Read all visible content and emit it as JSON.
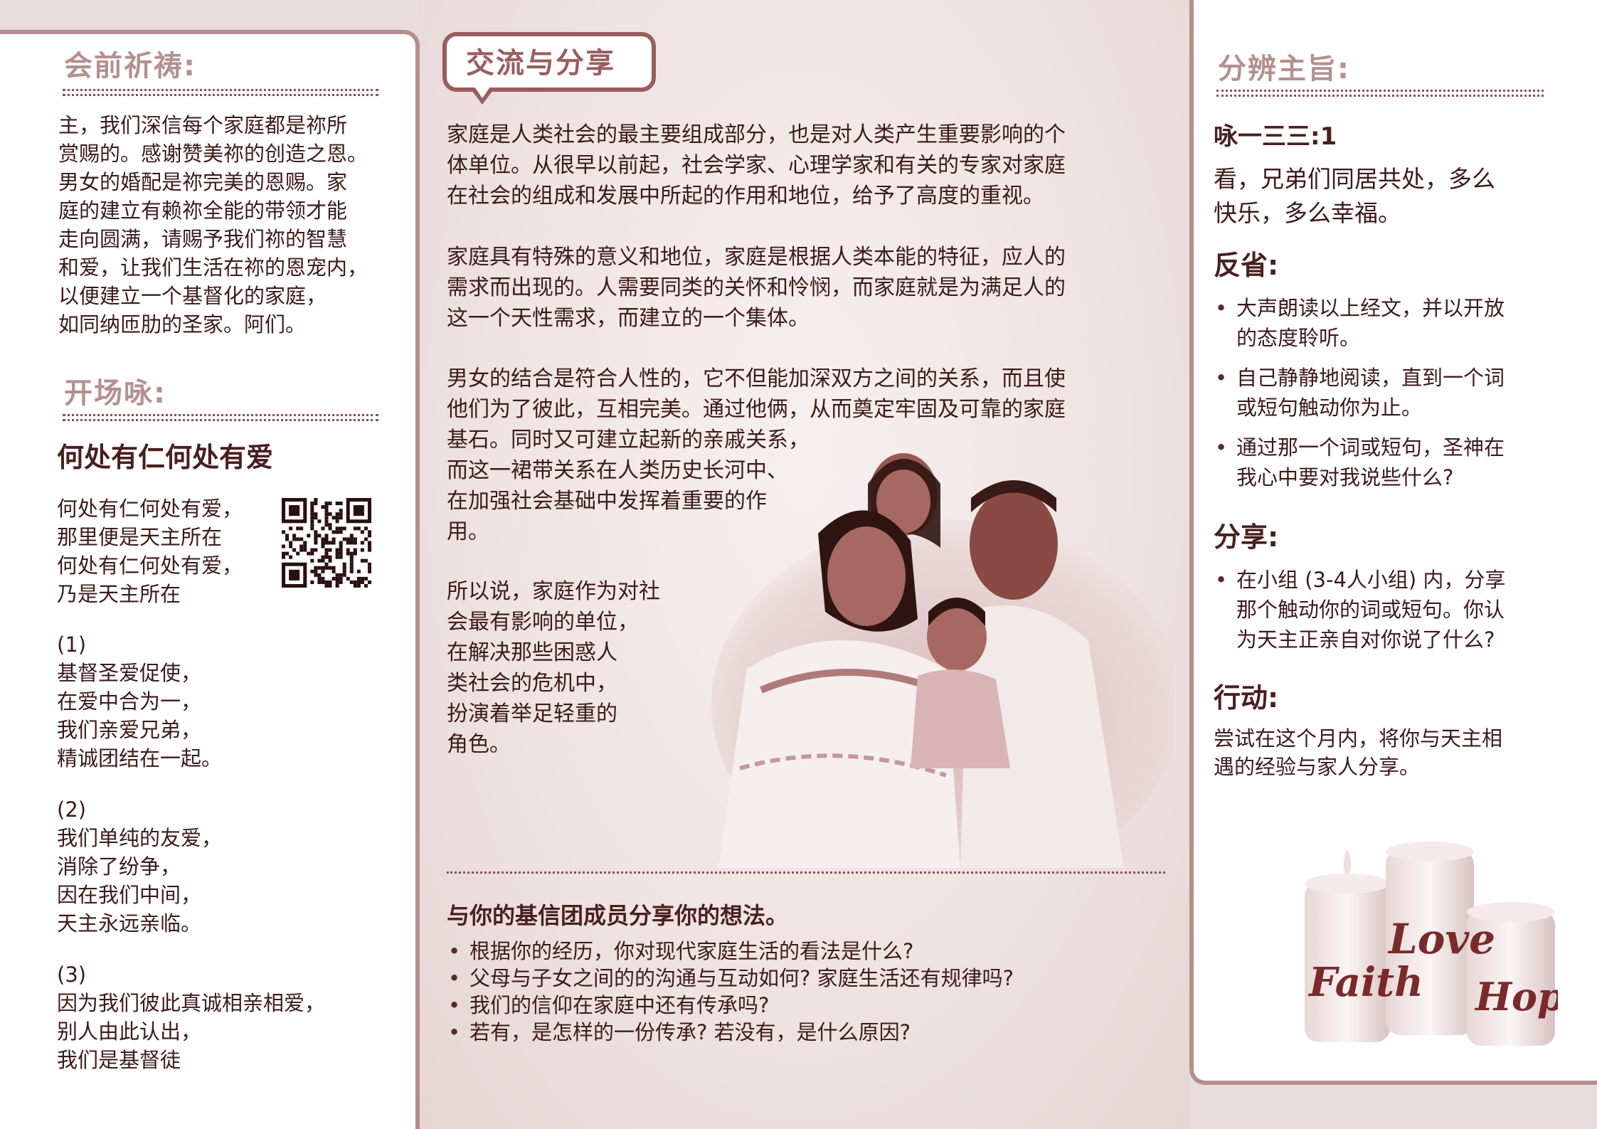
{
  "left": {
    "prayer_title": "会前祈祷:",
    "prayer_lines": [
      "主，我们深信每个家庭都是祢所",
      "赏赐的。感谢赞美祢的创造之恩。",
      "男女的婚配是祢完美的恩赐。家",
      "庭的建立有赖祢全能的带领才能",
      "走向圆满，请赐予我们祢的智慧",
      "和爱，让我们生活在祢的恩宠内，",
      "以便建立一个基督化的家庭，",
      "如同纳匝肋的圣家。阿们。"
    ],
    "hymn_title": "开场咏:",
    "song_title": "何处有仁何处有爱",
    "chorus": [
      "何处有仁何处有爱，",
      "那里便是天主所在",
      "何处有仁何处有爱，",
      "乃是天主所在"
    ],
    "verse1": [
      "(1)",
      "基督圣爱促使，",
      "在爱中合为一，",
      "我们亲爱兄弟，",
      "精诚团结在一起。"
    ],
    "verse2": [
      "(2)",
      "我们单纯的友爱，",
      "消除了纷争，",
      "因在我们中间，",
      "天主永远亲临。"
    ],
    "verse3": [
      "(3)",
      "因为我们彼此真诚相亲相爱，",
      "别人由此认出，",
      "我们是基督徒"
    ]
  },
  "middle": {
    "bubble_title": "交流与分享",
    "para1": [
      "家庭是人类社会的最主要组成部分，也是对人类产生重要影响的个",
      "体单位。从很早以前起，社会学家、心理学家和有关的专家对家庭",
      "在社会的组成和发展中所起的作用和地位，给予了高度的重视。"
    ],
    "para2": [
      "家庭具有特殊的意义和地位，家庭是根据人类本能的特征，应人的",
      "需求而出现的。人需要同类的关怀和怜悯，而家庭就是为满足人的",
      "这一个天性需求，而建立的一个集体。"
    ],
    "para3": [
      "男女的结合是符合人性的，它不但能加深双方之间的关系，而且使",
      "他们为了彼此，互相完美。通过他俩，从而奠定牢固及可靠的家庭",
      "基石。同时又可建立起新的亲戚关系，",
      "而这一裙带关系在人类历史长河中、",
      "在加强社会基础中发挥着重要的作",
      "用。"
    ],
    "para4": [
      "所以说，家庭作为对社",
      "会最有影响的单位，",
      "在解决那些困惑人",
      "类社会的危机中，",
      "扮演着举足轻重的",
      "角色。"
    ],
    "share_title": "与你的基信团成员分享你的想法。",
    "questions": [
      "根据你的经历，你对现代家庭生活的看法是什么?",
      "父母与子女之间的的沟通与互动如何? 家庭生活还有规律吗?",
      "我们的信仰在家庭中还有传承吗?",
      "若有，是怎样的一份传承? 若没有，是什么原因?"
    ]
  },
  "right": {
    "discern_title": "分辨主旨:",
    "psalm_ref": "咏一三三:1",
    "psalm_lines": [
      "看，兄弟们同居共处，多么",
      "快乐，多么幸福。"
    ],
    "reflect_title": "反省:",
    "reflect_items": [
      [
        "大声朗读以上经文，并以开放",
        "的态度聆听。"
      ],
      [
        "自己静静地阅读，直到一个词",
        "或短句触动你为止。"
      ],
      [
        "通过那一个词或短句，圣神在",
        "我心中要对我说些什么?"
      ]
    ],
    "share_title": "分享:",
    "share_items": [
      [
        "在小组 (3-4人小组) 内，分享",
        "那个触动你的词或短句。你认",
        "为天主正亲自对你说了什么?"
      ]
    ],
    "action_title": "行动:",
    "action_lines": [
      "尝试在这个月内，将你与天主相",
      "遇的经验与家人分享。"
    ],
    "candle_words": [
      "Faith",
      "Love",
      "Hope"
    ]
  },
  "colors": {
    "accent": "#9a5d5d",
    "header": "#b49090",
    "text": "#3d1a1a",
    "bg": "#e9dcdc"
  }
}
